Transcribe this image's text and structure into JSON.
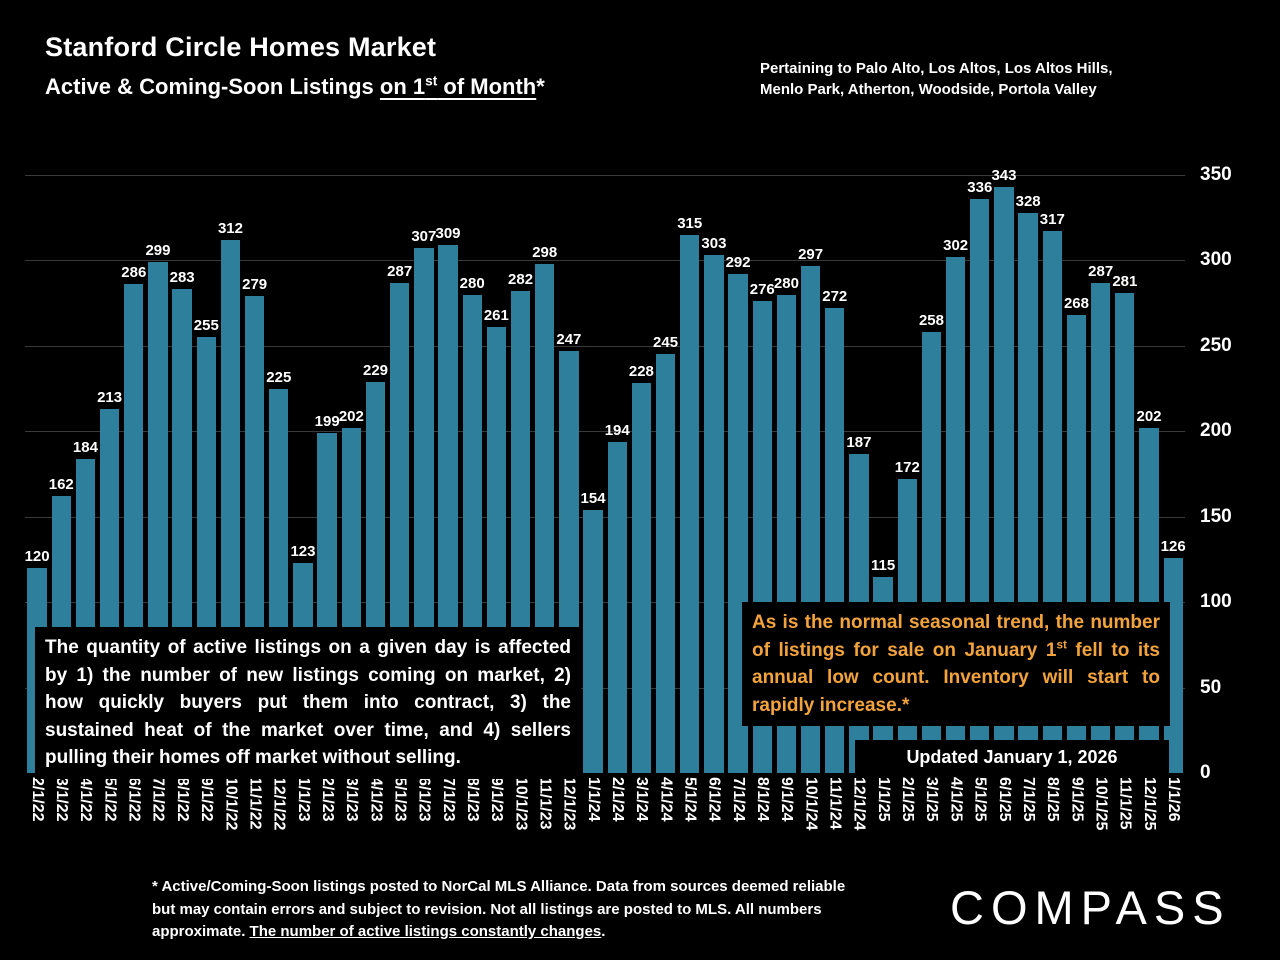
{
  "header": {
    "title": "Stanford Circle Homes Market",
    "subtitle_prefix": "Active & Coming-Soon Listings ",
    "subtitle_underline_pre": "on 1",
    "subtitle_underline_sup": "st",
    "subtitle_underline_post": " of Month",
    "subtitle_suffix": "*",
    "region_line1": "Pertaining to Palo Alto, Los Altos, Los Altos Hills,",
    "region_line2": "Menlo Park, Atherton, Woodside, Portola Valley"
  },
  "chart_data": {
    "type": "bar",
    "title": "Stanford Circle Homes Market — Active & Coming-Soon Listings on 1st of Month",
    "categories": [
      "2/1/22",
      "3/1/22",
      "4/1/22",
      "5/1/22",
      "6/1/22",
      "7/1/22",
      "8/1/22",
      "9/1/22",
      "10/1/22",
      "11/1/22",
      "12/1/22",
      "1/1/23",
      "2/1/23",
      "3/1/23",
      "4/1/23",
      "5/1/23",
      "6/1/23",
      "7/1/23",
      "8/1/23",
      "9/1/23",
      "10/1/23",
      "11/1/23",
      "12/1/23",
      "1/1/24",
      "2/1/24",
      "3/1/24",
      "4/1/24",
      "5/1/24",
      "6/1/24",
      "7/1/24",
      "8/1/24",
      "9/1/24",
      "10/1/24",
      "11/1/24",
      "12/1/24",
      "1/1/25",
      "2/1/25",
      "3/1/25",
      "4/1/25",
      "5/1/25",
      "6/1/25",
      "7/1/25",
      "8/1/25",
      "9/1/25",
      "10/1/25",
      "11/1/25",
      "12/1/25",
      "1/1/26"
    ],
    "values": [
      120,
      162,
      184,
      213,
      286,
      299,
      283,
      255,
      312,
      279,
      225,
      123,
      199,
      202,
      229,
      287,
      307,
      309,
      280,
      261,
      282,
      298,
      247,
      154,
      194,
      228,
      245,
      315,
      303,
      292,
      276,
      280,
      297,
      272,
      187,
      115,
      172,
      258,
      302,
      336,
      343,
      328,
      317,
      268,
      287,
      281,
      202,
      126
    ],
    "xlabel": "",
    "ylabel": "",
    "ylim": [
      0,
      350
    ],
    "yticks": [
      0,
      50,
      100,
      150,
      200,
      250,
      300,
      350
    ],
    "y_axis_side": "right",
    "grid": "faint-horizontal",
    "legend": "none",
    "bar_color": "#2E7F9C",
    "value_labels": "shown above each bar"
  },
  "annotations": {
    "left_box": "The quantity of active listings on a given day is affected by 1) the number of new listings coming on market, 2) how quickly buyers put them into contract, 3) the sustained heat of the market over time, and 4) sellers pulling their homes off market without selling.",
    "orange_pre": "As is the normal seasonal trend, the number of listings for sale on January 1",
    "orange_sup": "st",
    "orange_post": " fell to its annual low count. Inventory will start to rapidly increase.*",
    "orange_color": "#F2A33C",
    "updated": "Updated January 1, 2026"
  },
  "footer": {
    "disclaimer_pre": "* Active/Coming-Soon listings posted to NorCal MLS Alliance.  Data from sources deemed reliable but may contain errors and subject to revision.  Not all listings are posted to MLS. All numbers approximate. ",
    "disclaimer_underlined": "The number of active listings constantly changes",
    "disclaimer_end": ".",
    "logo": "COMPASS"
  }
}
